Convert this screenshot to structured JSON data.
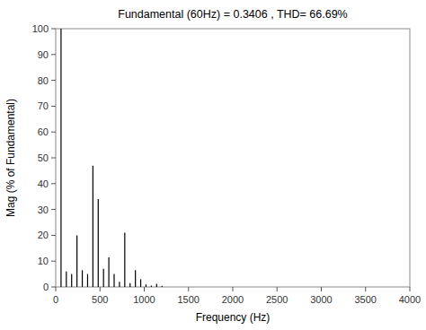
{
  "chart_data": {
    "type": "stem",
    "title": "Fundamental (60Hz) = 0.3406 , THD= 66.69%",
    "xlabel": "Frequency (Hz)",
    "ylabel": "Mag (% of Fundamental)",
    "x": [
      60,
      120,
      180,
      240,
      300,
      360,
      420,
      480,
      540,
      600,
      660,
      720,
      780,
      840,
      900,
      960,
      1020,
      1080,
      1140,
      1200
    ],
    "values": [
      100,
      6.0,
      5.0,
      20.0,
      6.5,
      5.0,
      47.0,
      34.0,
      7.0,
      11.5,
      5.0,
      2.0,
      21.0,
      1.5,
      6.5,
      3.0,
      1.0,
      0.5,
      1.2,
      0.4
    ],
    "color": "#000000",
    "xlim": [
      0,
      4000
    ],
    "xticks": [
      0,
      500,
      1000,
      1500,
      2000,
      2500,
      3000,
      3500,
      4000
    ],
    "ylim": [
      0,
      100
    ],
    "yticks": [
      0,
      10,
      20,
      30,
      40,
      50,
      60,
      70,
      80,
      90,
      100
    ]
  }
}
